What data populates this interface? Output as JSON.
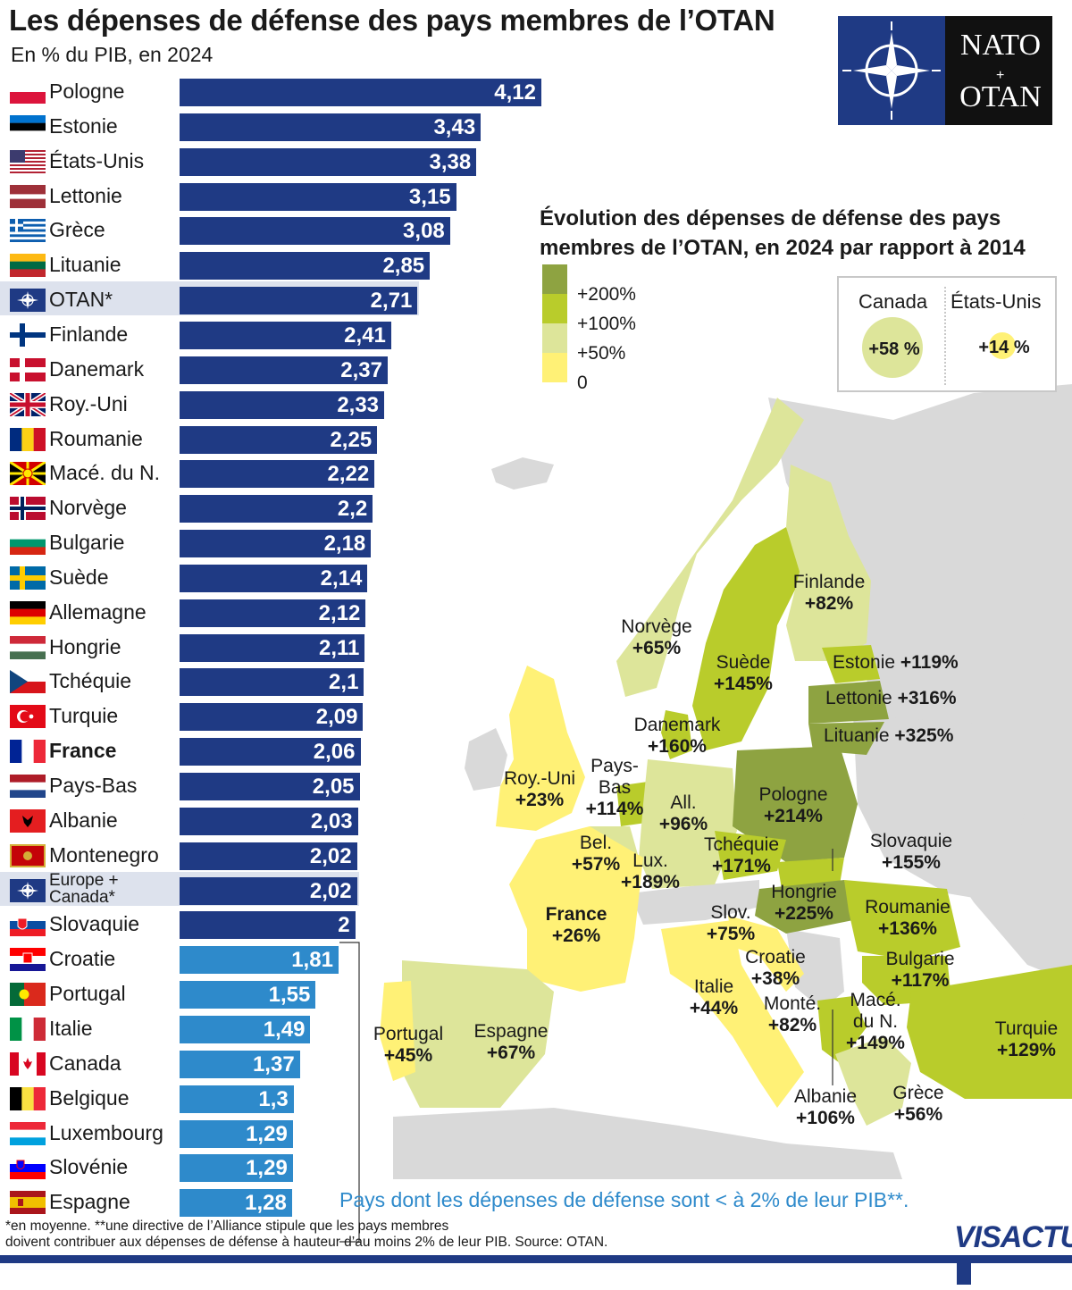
{
  "title": "Les dépenses de défense des pays membres de l’OTAN",
  "subtitle": "En % du PIB, en 2024",
  "nato_logo": {
    "line1": "NATO",
    "line2": "OTAN",
    "plus": "+",
    "icon": "nato-compass-icon"
  },
  "colors": {
    "bar_above": "#1f3a84",
    "bar_below": "#2e8acb",
    "highlight": "#dde2ed",
    "legend": [
      "#8ea341",
      "#b9cc2b",
      "#dde59a",
      "#fff176"
    ],
    "nonmember": "#d9d9d9"
  },
  "chart_data": [
    {
      "type": "bar",
      "orientation": "horizontal",
      "unit": "% du PIB",
      "categories": [
        "Pologne",
        "Estonie",
        "États-Unis",
        "Lettonie",
        "Grèce",
        "Lituanie",
        "OTAN*",
        "Finlande",
        "Danemark",
        "Roy.-Uni",
        "Roumanie",
        "Macé. du N.",
        "Norvège",
        "Bulgarie",
        "Suède",
        "Allemagne",
        "Hongrie",
        "Tchéquie",
        "Turquie",
        "France",
        "Pays-Bas",
        "Albanie",
        "Montenegro",
        "Europe + Canada*",
        "Slovaquie",
        "Croatie",
        "Portugal",
        "Italie",
        "Canada",
        "Belgique",
        "Luxembourg",
        "Slovénie",
        "Espagne"
      ],
      "labels": [
        "4,12",
        "3,43",
        "3,38",
        "3,15",
        "3,08",
        "2,85",
        "2,71",
        "2,41",
        "2,37",
        "2,33",
        "2,25",
        "2,22",
        "2,2",
        "2,18",
        "2,14",
        "2,12",
        "2,11",
        "2,1",
        "2,09",
        "2,06",
        "2,05",
        "2,03",
        "2,02",
        "2,02",
        "2",
        "1,81",
        "1,55",
        "1,49",
        "1,37",
        "1,3",
        "1,29",
        "1,29",
        "1,28"
      ],
      "values": [
        4.12,
        3.43,
        3.38,
        3.15,
        3.08,
        2.85,
        2.71,
        2.41,
        2.37,
        2.33,
        2.25,
        2.22,
        2.2,
        2.18,
        2.14,
        2.12,
        2.11,
        2.1,
        2.09,
        2.06,
        2.05,
        2.03,
        2.02,
        2.02,
        2.0,
        1.81,
        1.55,
        1.49,
        1.37,
        1.3,
        1.29,
        1.29,
        1.28
      ],
      "highlighted": [
        "OTAN*",
        "Europe + Canada*"
      ],
      "bold": [
        "France"
      ],
      "threshold": 2,
      "xlim": [
        0,
        4.12
      ]
    },
    {
      "type": "choropleth",
      "title": "Évolution des dépenses de défense des pays membres de l’OTAN, en 2024 par rapport à 2014",
      "legend": [
        "+200%",
        "+100%",
        "+50%",
        "0"
      ],
      "countries": [
        {
          "name": "Finlande",
          "value": "+82%"
        },
        {
          "name": "Norvège",
          "value": "+65%"
        },
        {
          "name": "Suède",
          "value": "+145%"
        },
        {
          "name": "Estonie",
          "value": "+119%"
        },
        {
          "name": "Lettonie",
          "value": "+316%"
        },
        {
          "name": "Lituanie",
          "value": "+325%"
        },
        {
          "name": "Danemark",
          "value": "+160%"
        },
        {
          "name": "Roy.-Uni",
          "value": "+23%"
        },
        {
          "name": "Pays-Bas",
          "value": "+114%"
        },
        {
          "name": "All.",
          "value": "+96%"
        },
        {
          "name": "Pologne",
          "value": "+214%"
        },
        {
          "name": "Bel.",
          "value": "+57%"
        },
        {
          "name": "Lux.",
          "value": "+189%"
        },
        {
          "name": "Tchéquie",
          "value": "+171%"
        },
        {
          "name": "Slovaquie",
          "value": "+155%"
        },
        {
          "name": "France",
          "value": "+26%"
        },
        {
          "name": "Hongrie",
          "value": "+225%"
        },
        {
          "name": "Roumanie",
          "value": "+136%"
        },
        {
          "name": "Slov.",
          "value": "+75%"
        },
        {
          "name": "Croatie",
          "value": "+38%"
        },
        {
          "name": "Bulgarie",
          "value": "+117%"
        },
        {
          "name": "Italie",
          "value": "+44%"
        },
        {
          "name": "Monté.",
          "value": "+82%"
        },
        {
          "name": "Macé. du N.",
          "value": "+149%"
        },
        {
          "name": "Turquie",
          "value": "+129%"
        },
        {
          "name": "Portugal",
          "value": "+45%"
        },
        {
          "name": "Espagne",
          "value": "+67%"
        },
        {
          "name": "Albanie",
          "value": "+106%"
        },
        {
          "name": "Grèce",
          "value": "+56%"
        }
      ],
      "inset": [
        {
          "name": "Canada",
          "value": "+58 %"
        },
        {
          "name": "États-Unis",
          "value": "+14 %"
        }
      ]
    }
  ],
  "note": "Pays dont les dépenses de défense sont < à 2% de leur PIB**.",
  "footnote": {
    "line1": "*en moyenne. **une directive de l’Alliance stipule que les pays membres",
    "line2": "doivent contribuer aux dépenses de défense à hauteur d’au moins 2% de leur PIB. Source: OTAN."
  },
  "brand": "VISACTU"
}
